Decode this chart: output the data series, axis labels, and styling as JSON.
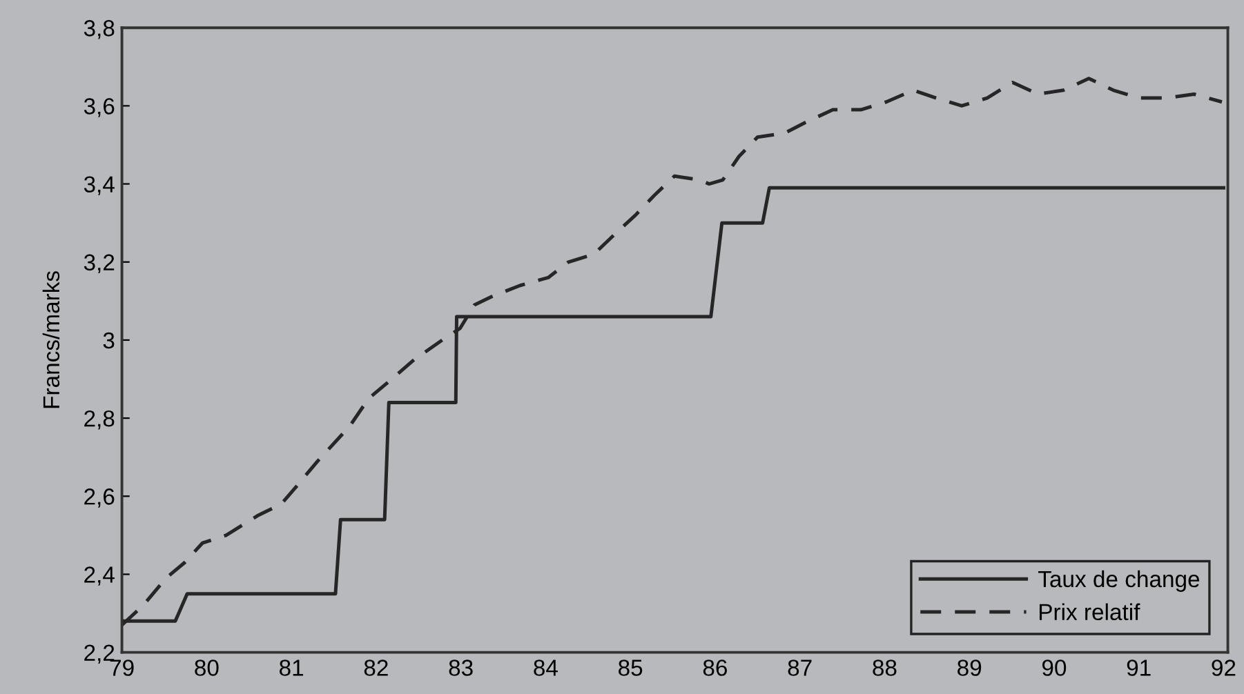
{
  "chart_data": {
    "type": "line",
    "ylabel": "Francs/marks",
    "xlim": [
      79,
      92.05
    ],
    "ylim": [
      2.2,
      3.8
    ],
    "xticks": [
      79,
      80,
      81,
      82,
      83,
      84,
      85,
      86,
      87,
      88,
      89,
      90,
      91,
      92
    ],
    "yticks": [
      {
        "value": 2.2,
        "label": "2,2"
      },
      {
        "value": 2.4,
        "label": "2,4"
      },
      {
        "value": 2.6,
        "label": "2,6"
      },
      {
        "value": 2.8,
        "label": "2,8"
      },
      {
        "value": 3.0,
        "label": "3"
      },
      {
        "value": 3.2,
        "label": "3,2"
      },
      {
        "value": 3.4,
        "label": "3,4"
      },
      {
        "value": 3.6,
        "label": "3,6"
      },
      {
        "value": 3.8,
        "label": "3,8"
      }
    ],
    "grid": false,
    "legend": "bottom right",
    "series": [
      {
        "name": "Taux de change",
        "color": "#262626",
        "line_style": "solid",
        "x": [
          79.0,
          79.63,
          79.77,
          81.52,
          81.58,
          82.1,
          82.15,
          82.94,
          82.95,
          85.95,
          86.08,
          86.56,
          86.64,
          92.0
        ],
        "values": [
          2.28,
          2.28,
          2.35,
          2.35,
          2.54,
          2.54,
          2.84,
          2.84,
          3.06,
          3.06,
          3.3,
          3.3,
          3.39,
          3.39
        ]
      },
      {
        "name": "Prix relatif",
        "color": "#262626",
        "line_style": "dashed",
        "x": [
          79.0,
          79.25,
          79.52,
          79.74,
          79.95,
          80.23,
          80.6,
          80.88,
          81.04,
          81.31,
          81.69,
          81.91,
          82.13,
          82.45,
          82.78,
          82.99,
          83.16,
          83.35,
          83.7,
          84.03,
          84.27,
          84.57,
          84.81,
          85.06,
          85.28,
          85.52,
          85.82,
          85.93,
          86.09,
          86.28,
          86.5,
          86.82,
          87.09,
          87.39,
          87.72,
          88.02,
          88.34,
          88.61,
          88.91,
          89.21,
          89.51,
          89.81,
          90.11,
          90.41,
          90.7,
          91.0,
          91.33,
          91.65,
          91.98
        ],
        "values": [
          2.27,
          2.32,
          2.39,
          2.43,
          2.48,
          2.5,
          2.55,
          2.58,
          2.62,
          2.69,
          2.78,
          2.85,
          2.89,
          2.95,
          3.0,
          3.03,
          3.09,
          3.11,
          3.14,
          3.16,
          3.2,
          3.22,
          3.27,
          3.32,
          3.37,
          3.42,
          3.41,
          3.4,
          3.41,
          3.47,
          3.52,
          3.53,
          3.56,
          3.59,
          3.59,
          3.61,
          3.64,
          3.62,
          3.6,
          3.62,
          3.66,
          3.63,
          3.64,
          3.67,
          3.64,
          3.62,
          3.62,
          3.63,
          3.61
        ]
      }
    ]
  }
}
